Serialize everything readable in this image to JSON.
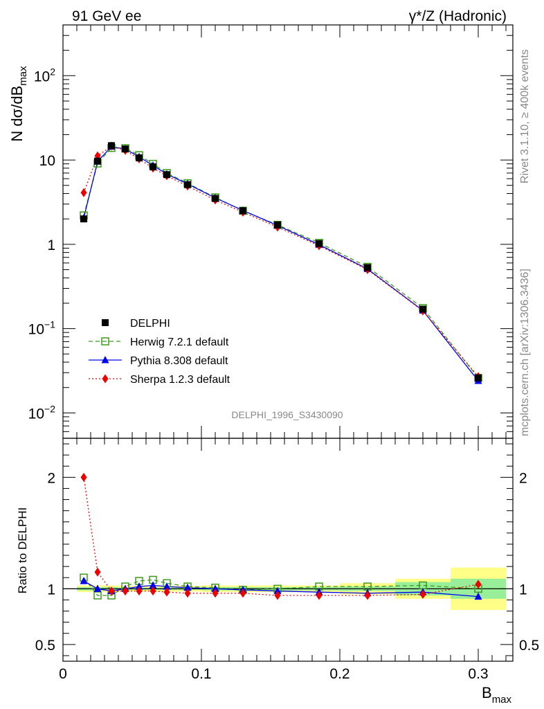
{
  "header": {
    "left_label": "91 GeV ee",
    "right_label": "γ*/Z (Hadronic)"
  },
  "side_labels": {
    "rivet": "Rivet 3.1.10, ≥ 400k events",
    "mcplots": "mcplots.cern.ch [arXiv:1306.3436]"
  },
  "watermark": "DELPHI_1996_S3430090",
  "colors": {
    "herwig": "#3a9a1a",
    "pythia": "#0000ee",
    "sherpa": "#ee0000",
    "band_outer": "#ffff88",
    "band_inner": "#99ee99"
  },
  "chart_data": [
    {
      "type": "scatter",
      "panel": "main",
      "ylabel_main": "N dσ/dB",
      "ylabel_sub": "max",
      "yscale": "log",
      "xlim": [
        0,
        0.325
      ],
      "ylim": [
        0.005,
        400
      ],
      "y_tick_labels": [
        {
          "value": 0.01,
          "base": "10",
          "exp": "−2"
        },
        {
          "value": 0.1,
          "base": "10",
          "exp": "−1"
        },
        {
          "value": 1,
          "base": "1",
          "exp": ""
        },
        {
          "value": 10,
          "base": "10",
          "exp": ""
        },
        {
          "value": 100,
          "base": "10",
          "exp": "2"
        }
      ],
      "legend_position": "lower-left",
      "x": [
        0.015,
        0.025,
        0.035,
        0.045,
        0.055,
        0.065,
        0.075,
        0.09,
        0.11,
        0.13,
        0.155,
        0.185,
        0.22,
        0.26,
        0.3
      ],
      "series": [
        {
          "name": "DELPHI",
          "marker": "square-filled",
          "values": [
            2.0,
            9.7,
            14.8,
            13.5,
            10.6,
            8.3,
            6.7,
            5.1,
            3.5,
            2.5,
            1.7,
            1.02,
            0.53,
            0.17,
            0.026
          ]
        },
        {
          "name": "Herwig 7.2.1 default",
          "marker": "square-open",
          "line": "dashed",
          "values": [
            2.2,
            9.1,
            13.9,
            13.8,
            11.4,
            9.0,
            7.0,
            5.3,
            3.6,
            2.5,
            1.7,
            1.04,
            0.54,
            0.175,
            0.026
          ]
        },
        {
          "name": "Pythia 8.308 default",
          "marker": "triangle",
          "line": "solid",
          "values": [
            2.05,
            9.6,
            14.4,
            13.5,
            10.9,
            8.6,
            6.8,
            5.2,
            3.55,
            2.52,
            1.67,
            0.99,
            0.51,
            0.164,
            0.024
          ]
        },
        {
          "name": "Sherpa 1.2.3 default",
          "marker": "diamond",
          "line": "dotted",
          "values": [
            4.1,
            11.2,
            14.6,
            13.0,
            10.3,
            8.0,
            6.5,
            4.9,
            3.35,
            2.4,
            1.6,
            0.96,
            0.5,
            0.162,
            0.027
          ]
        }
      ]
    },
    {
      "type": "scatter",
      "panel": "ratio",
      "ylabel": "Ratio to DELPHI",
      "xlabel_main": "B",
      "xlabel_sub": "max",
      "xlim": [
        0,
        0.325
      ],
      "ylim": [
        0.35,
        2.35
      ],
      "y_tick_labels": [
        "0.5",
        "1",
        "2"
      ],
      "x_tick_labels": [
        "0",
        "0.1",
        "0.2",
        "0.3"
      ],
      "bands": [
        {
          "x_from": 0.01,
          "x_to": 0.04,
          "inner": 0.015,
          "outer": 0.03
        },
        {
          "x_from": 0.04,
          "x_to": 0.1,
          "inner": 0.01,
          "outer": 0.025
        },
        {
          "x_from": 0.1,
          "x_to": 0.2,
          "inner": 0.015,
          "outer": 0.03
        },
        {
          "x_from": 0.2,
          "x_to": 0.24,
          "inner": 0.02,
          "outer": 0.05
        },
        {
          "x_from": 0.24,
          "x_to": 0.28,
          "inner": 0.06,
          "outer": 0.09
        },
        {
          "x_from": 0.28,
          "x_to": 0.32,
          "inner": 0.09,
          "outer": 0.19
        }
      ],
      "x": [
        0.015,
        0.025,
        0.035,
        0.045,
        0.055,
        0.065,
        0.075,
        0.09,
        0.11,
        0.13,
        0.155,
        0.185,
        0.22,
        0.26,
        0.3
      ],
      "series": [
        {
          "name": "Herwig 7.2.1 default",
          "marker": "square-open",
          "line": "dashed",
          "values": [
            1.1,
            0.94,
            0.94,
            1.02,
            1.07,
            1.08,
            1.05,
            1.02,
            1.01,
            0.99,
            1.0,
            1.02,
            1.02,
            1.03,
            1.0
          ]
        },
        {
          "name": "Pythia 8.308 default",
          "marker": "triangle",
          "line": "solid",
          "values": [
            1.07,
            1.0,
            0.98,
            1.0,
            1.02,
            1.03,
            1.02,
            1.01,
            1.0,
            0.99,
            0.98,
            0.97,
            0.96,
            0.97,
            0.93
          ]
        },
        {
          "name": "Sherpa 1.2.3 default",
          "marker": "diamond",
          "line": "dotted",
          "values": [
            2.0,
            1.15,
            0.98,
            0.98,
            0.98,
            0.98,
            0.97,
            0.96,
            0.96,
            0.96,
            0.94,
            0.94,
            0.94,
            0.95,
            1.04
          ]
        }
      ]
    }
  ]
}
